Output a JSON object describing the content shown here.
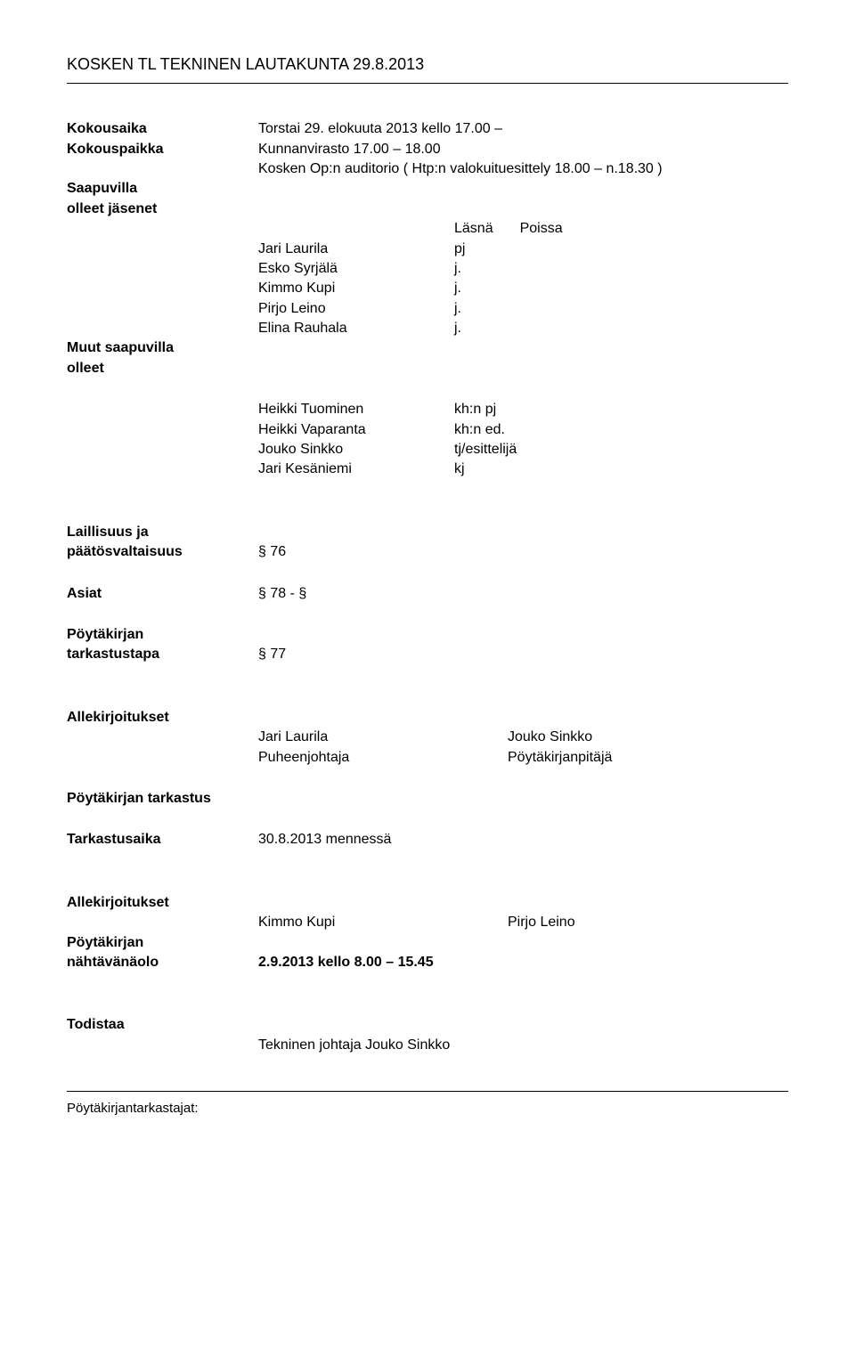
{
  "header": {
    "title": "KOSKEN TL TEKNINEN LAUTAKUNTA 29.8.2013"
  },
  "meeting": {
    "time_label": "Kokousaika",
    "time_value1": "Torstai 29. elokuuta 2013 kello 17.00 –",
    "place_label": "Kokouspaikka",
    "place_value1": "Kunnanvirasto 17.00 – 18.00",
    "place_value2": "Kosken Op:n auditorio ( Htp:n valokuituesittely 18.00 – n.18.30 )"
  },
  "present": {
    "members_label": "Saapuvilla",
    "members_label2": "olleet jäsenet",
    "col_present": "Läsnä",
    "col_absent": "Poissa",
    "rows": [
      {
        "name": "Jari Laurila",
        "role": "pj"
      },
      {
        "name": "Esko Syrjälä",
        "role": "j."
      },
      {
        "name": "Kimmo Kupi",
        "role": "j."
      },
      {
        "name": "Pirjo Leino",
        "role": " j."
      },
      {
        "name": "Elina Rauhala",
        "role": "j."
      }
    ]
  },
  "others": {
    "label1": "Muut saapuvilla",
    "label2": "olleet",
    "rows": [
      {
        "name": "Heikki Tuominen",
        "role": "kh:n pj"
      },
      {
        "name": "Heikki Vaparanta",
        "role": "kh:n ed."
      },
      {
        "name": "Jouko Sinkko",
        "role": "tj/esittelijä"
      },
      {
        "name": "Jari Kesäniemi",
        "role": "kj"
      }
    ]
  },
  "legality": {
    "label1": "Laillisuus ja",
    "label2": "päätösvaltaisuus",
    "value": "§ 76"
  },
  "matters": {
    "label": "Asiat",
    "value": "§ 78 - §"
  },
  "minutes_check": {
    "label1": "Pöytäkirjan",
    "label2": "tarkastustapa",
    "value": "§ 77"
  },
  "signatures1": {
    "label": "Allekirjoitukset",
    "left_name": "Jari Laurila",
    "left_role": " Puheenjohtaja",
    "right_name": "Jouko Sinkko",
    "right_role": " Pöytäkirjanpitäjä"
  },
  "review": {
    "label": "Pöytäkirjan tarkastus"
  },
  "review_time": {
    "label": "Tarkastusaika",
    "value": "30.8.2013 mennessä"
  },
  "signatures2": {
    "label": "Allekirjoitukset",
    "left": "Kimmo Kupi",
    "right": "Pirjo Leino"
  },
  "available": {
    "label1": "Pöytäkirjan",
    "label2": "nähtävänäolo",
    "value": "2.9.2013 kello 8.00 – 15.45"
  },
  "attest": {
    "label": "Todistaa",
    "value": "Tekninen johtaja Jouko Sinkko"
  },
  "footer": {
    "text": "Pöytäkirjantarkastajat:"
  }
}
